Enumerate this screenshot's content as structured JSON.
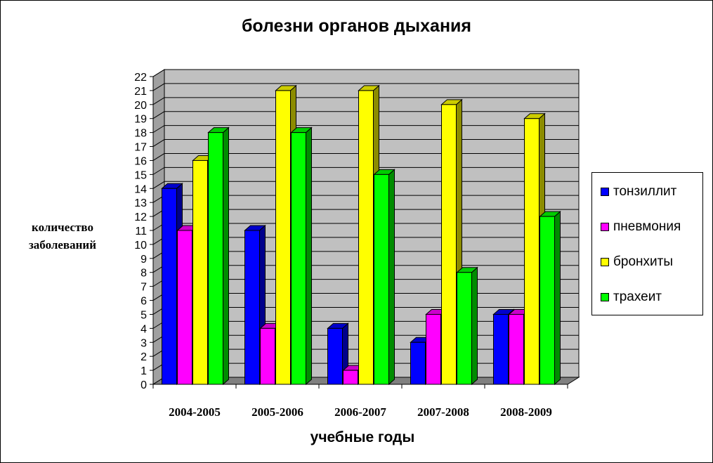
{
  "chart_data": {
    "type": "bar",
    "title": "болезни органов дыхания",
    "xlabel": "учебные годы",
    "ylabel_lines": [
      "количество",
      "заболеваний"
    ],
    "categories": [
      "2004-2005",
      "2005-2006",
      "2006-2007",
      "2007-2008",
      "2008-2009"
    ],
    "series": [
      {
        "name": "тонзиллит",
        "color": "#0000ff",
        "values": [
          14,
          11,
          4,
          3,
          5
        ]
      },
      {
        "name": "пневмония",
        "color": "#ff00ff",
        "values": [
          11,
          4,
          1,
          5,
          5
        ]
      },
      {
        "name": "бронхиты",
        "color": "#ffff00",
        "values": [
          16,
          21,
          21,
          20,
          19
        ]
      },
      {
        "name": "трахеит",
        "color": "#00ff00",
        "values": [
          18,
          18,
          15,
          8,
          12
        ]
      }
    ],
    "ylim": [
      0,
      22
    ],
    "yticks": [
      "0",
      "1",
      "2",
      "3",
      "4",
      "5",
      "6",
      "7",
      "8",
      "9",
      "10",
      "11",
      "12",
      "13",
      "14",
      "15",
      "16",
      "17",
      "18",
      "19",
      "20",
      "21",
      "22"
    ],
    "grid": true,
    "legend_position": "right",
    "plot_wall_color": "#c0c0c0",
    "floor_color": "#808080"
  }
}
